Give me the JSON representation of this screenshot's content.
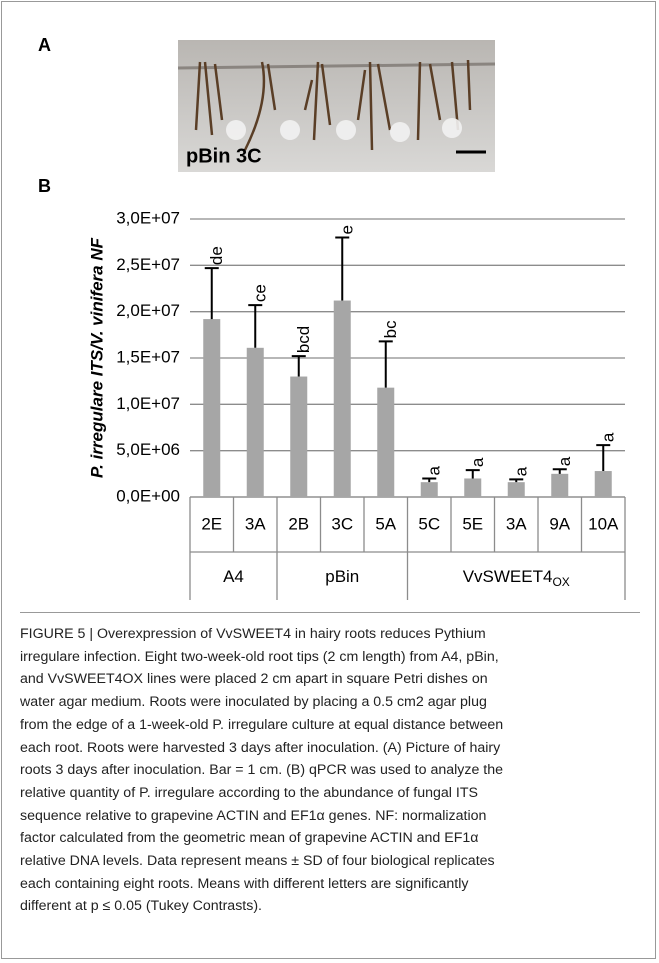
{
  "panels": {
    "a": "A",
    "b": "B"
  },
  "photo": {
    "label": "pBin 3C"
  },
  "chart_data": {
    "type": "bar",
    "ylabel": "P. irregulare ITS/V. vinifera NF",
    "categories": [
      "2E",
      "3A",
      "2B",
      "3C",
      "5A",
      "5C",
      "5E",
      "3A",
      "9A",
      "10A"
    ],
    "groups": [
      "A4",
      "A4",
      "pBin",
      "pBin",
      "pBin",
      "VvSWEET4",
      "VvSWEET4",
      "VvSWEET4",
      "VvSWEET4",
      "VvSWEET4"
    ],
    "group_subscripts": [
      null,
      null,
      null,
      null,
      null,
      "OX",
      "OX",
      "OX",
      "OX",
      "OX"
    ],
    "values": [
      19200000,
      16100000,
      13000000,
      21200000,
      11800000,
      1600000,
      2000000,
      1600000,
      2500000,
      2800000
    ],
    "errors": [
      5500000,
      4600000,
      2200000,
      6800000,
      5000000,
      400000,
      900000,
      300000,
      500000,
      2800000
    ],
    "letters": [
      "de",
      "ce",
      "bcd",
      "e",
      "bc",
      "a",
      "a",
      "a",
      "a",
      "a"
    ],
    "color": "#a6a6a6",
    "ylim": [
      0,
      30000000
    ],
    "yticks": [
      {
        "value": 0,
        "label": "0,0E+00"
      },
      {
        "value": 5000000,
        "label": "5,0E+06"
      },
      {
        "value": 10000000,
        "label": "1,0E+07"
      },
      {
        "value": 15000000,
        "label": "1,5E+07"
      },
      {
        "value": 20000000,
        "label": "2,0E+07"
      },
      {
        "value": 25000000,
        "label": "2,5E+07"
      },
      {
        "value": 30000000,
        "label": "3,0E+07"
      }
    ],
    "grid": true
  },
  "caption": [
    "FIGURE 5 | Overexpression of VvSWEET4 in hairy roots reduces Pythium",
    "irregulare infection. Eight two-week-old root tips (2 cm length) from A4, pBin,",
    "and VvSWEET4OX lines were placed 2 cm apart in square Petri dishes on",
    "water agar medium. Roots were inoculated by placing a 0.5 cm2 agar plug",
    "from the edge of a 1-week-old P. irregulare culture at equal distance between",
    "each root. Roots were harvested 3 days after inoculation. (A) Picture of hairy",
    "roots 3 days after inoculation. Bar = 1 cm. (B) qPCR was used to analyze the",
    "relative quantity of P. irregulare according to the abundance of fungal ITS",
    "sequence relative to grapevine ACTIN and EF1α genes. NF: normalization",
    "factor calculated from the geometric mean of grapevine ACTIN and EF1α",
    "relative DNA levels. Data represent means ± SD of four biological replicates",
    "each containing eight roots. Means with different letters are significantly",
    "different at p ≤ 0.05 (Tukey Contrasts)."
  ]
}
